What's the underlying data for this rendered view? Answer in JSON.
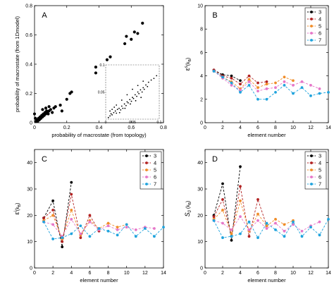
{
  "chart_data": [
    {
      "panel_label": "A",
      "type": "scatter",
      "xlabel": "probability of macrostate (from topology)",
      "ylabel": "probability of macrostate (from 1Dmodel)",
      "xlim": [
        0,
        0.8
      ],
      "ylim": [
        0,
        0.8
      ],
      "xticks": [
        "0",
        "0.2",
        "0.4",
        "0.6",
        "0.8"
      ],
      "yticks": [
        "0",
        "0.2",
        "0.4",
        "0.6",
        "0.8"
      ],
      "points": [
        [
          0.01,
          0.01
        ],
        [
          0.015,
          0.02
        ],
        [
          0.02,
          0.01
        ],
        [
          0.025,
          0.03
        ],
        [
          0.03,
          0.02
        ],
        [
          0.035,
          0.04
        ],
        [
          0.04,
          0.03
        ],
        [
          0.045,
          0.05
        ],
        [
          0.05,
          0.04
        ],
        [
          0.055,
          0.06
        ],
        [
          0.06,
          0.05
        ],
        [
          0.065,
          0.07
        ],
        [
          0.07,
          0.06
        ],
        [
          0.075,
          0.08
        ],
        [
          0.08,
          0.07
        ],
        [
          0.085,
          0.06
        ],
        [
          0.09,
          0.08
        ],
        [
          0.1,
          0.09
        ],
        [
          0.11,
          0.07
        ],
        [
          0.12,
          0.1
        ],
        [
          0.13,
          0.11
        ],
        [
          0.05,
          0.09
        ],
        [
          0.07,
          0.1
        ],
        [
          0.09,
          0.11
        ],
        [
          0.16,
          0.12
        ],
        [
          0.17,
          0.08
        ],
        [
          0.2,
          0.16
        ],
        [
          0.22,
          0.2
        ],
        [
          0.23,
          0.21
        ],
        [
          0.38,
          0.38
        ],
        [
          0.38,
          0.34
        ],
        [
          0.45,
          0.43
        ],
        [
          0.47,
          0.45
        ],
        [
          0.56,
          0.54
        ],
        [
          0.57,
          0.59
        ],
        [
          0.62,
          0.62
        ],
        [
          0.64,
          0.61
        ],
        [
          0.67,
          0.68
        ],
        [
          0.6,
          0.57
        ],
        [
          0.0,
          0.06
        ],
        [
          0.005,
          0.03
        ]
      ],
      "inset": {
        "xlim": [
          0,
          0.1
        ],
        "ylim": [
          0,
          0.1
        ],
        "xticks": [
          "0",
          "0.05",
          "0.1"
        ],
        "yticks": [
          "0.05",
          "0.1"
        ],
        "points": [
          [
            0.005,
            0.003
          ],
          [
            0.008,
            0.006
          ],
          [
            0.01,
            0.01
          ],
          [
            0.012,
            0.008
          ],
          [
            0.015,
            0.012
          ],
          [
            0.018,
            0.015
          ],
          [
            0.02,
            0.011
          ],
          [
            0.022,
            0.018
          ],
          [
            0.025,
            0.02
          ],
          [
            0.028,
            0.017
          ],
          [
            0.03,
            0.024
          ],
          [
            0.032,
            0.02
          ],
          [
            0.035,
            0.028
          ],
          [
            0.038,
            0.025
          ],
          [
            0.04,
            0.032
          ],
          [
            0.042,
            0.03
          ],
          [
            0.045,
            0.036
          ],
          [
            0.048,
            0.033
          ],
          [
            0.05,
            0.04
          ],
          [
            0.052,
            0.038
          ],
          [
            0.055,
            0.045
          ],
          [
            0.058,
            0.042
          ],
          [
            0.06,
            0.05
          ],
          [
            0.062,
            0.047
          ],
          [
            0.065,
            0.054
          ],
          [
            0.068,
            0.05
          ],
          [
            0.07,
            0.058
          ],
          [
            0.072,
            0.055
          ],
          [
            0.075,
            0.063
          ],
          [
            0.078,
            0.06
          ],
          [
            0.08,
            0.068
          ],
          [
            0.085,
            0.072
          ],
          [
            0.09,
            0.075
          ],
          [
            0.095,
            0.08
          ],
          [
            0.012,
            0.018
          ],
          [
            0.02,
            0.026
          ],
          [
            0.03,
            0.035
          ],
          [
            0.04,
            0.045
          ],
          [
            0.05,
            0.055
          ],
          [
            0.06,
            0.062
          ],
          [
            0.07,
            0.07
          ],
          [
            0.008,
            0.015
          ],
          [
            0.016,
            0.022
          ],
          [
            0.026,
            0.012
          ],
          [
            0.036,
            0.02
          ],
          [
            0.046,
            0.028
          ],
          [
            0.056,
            0.034
          ],
          [
            0.066,
            0.04
          ]
        ]
      }
    },
    {
      "panel_label": "B",
      "type": "line",
      "xlabel": "element number",
      "ylabel_main": "ε",
      "ylabel_sup": "s",
      "ylabel_paren": "(k",
      "ylabel_sub": "B",
      "ylabel_close": ")",
      "xlim": [
        0,
        14
      ],
      "ylim": [
        0,
        10
      ],
      "xticks": [
        "0",
        "2",
        "4",
        "6",
        "8",
        "10",
        "12",
        "14"
      ],
      "yticks": [
        "0",
        "2",
        "4",
        "6",
        "8",
        "10"
      ],
      "series": [
        {
          "name": "3",
          "color": "#000000",
          "x": [
            1,
            2,
            3,
            4
          ],
          "y": [
            4.5,
            4.1,
            4.0,
            3.6
          ]
        },
        {
          "name": "4",
          "color": "#b22222",
          "x": [
            1,
            2,
            3,
            4,
            5,
            6,
            7
          ],
          "y": [
            4.5,
            4.0,
            3.8,
            3.3,
            4.0,
            3.4,
            3.5
          ]
        },
        {
          "name": "5",
          "color": "#f08c28",
          "x": [
            1,
            2,
            3,
            4,
            5,
            6,
            7,
            8,
            9,
            10
          ],
          "y": [
            4.4,
            3.9,
            3.5,
            2.9,
            3.7,
            3.0,
            3.3,
            3.4,
            3.9,
            3.6
          ]
        },
        {
          "name": "6",
          "color": "#e676c8",
          "x": [
            1,
            2,
            3,
            4,
            5,
            6,
            7,
            8,
            9,
            10,
            11,
            12,
            13
          ],
          "y": [
            4.4,
            3.8,
            3.2,
            2.8,
            3.5,
            2.7,
            2.9,
            3.0,
            3.5,
            3.2,
            3.5,
            3.2,
            2.9
          ]
        },
        {
          "name": "7",
          "color": "#1fa3dd",
          "x": [
            1,
            2,
            3,
            4,
            5,
            6,
            7,
            8,
            9,
            10,
            11,
            12,
            13,
            14
          ],
          "y": [
            4.4,
            3.9,
            3.4,
            2.6,
            3.2,
            2.0,
            2.0,
            2.6,
            3.2,
            2.5,
            3.0,
            2.3,
            2.5,
            2.6
          ]
        }
      ]
    },
    {
      "panel_label": "C",
      "type": "line",
      "xlabel": "element number",
      "ylabel_main": "ε",
      "ylabel_sup": "i",
      "ylabel_paren": "(k",
      "ylabel_sub": "B",
      "ylabel_close": ")",
      "xlim": [
        0,
        14
      ],
      "ylim": [
        0,
        45
      ],
      "xticks": [
        "0",
        "2",
        "4",
        "6",
        "8",
        "10",
        "12",
        "14"
      ],
      "yticks": [
        "0",
        "10",
        "20",
        "30",
        "40"
      ],
      "series": [
        {
          "name": "3",
          "color": "#000000",
          "x": [
            1,
            2,
            3,
            4
          ],
          "y": [
            19.0,
            25.5,
            8.0,
            32.5
          ]
        },
        {
          "name": "4",
          "color": "#b22222",
          "x": [
            1,
            2,
            3,
            4,
            5,
            6,
            7
          ],
          "y": [
            19.0,
            22.0,
            10.0,
            28.0,
            11.5,
            20.0,
            14.0
          ]
        },
        {
          "name": "5",
          "color": "#f08c28",
          "x": [
            1,
            2,
            3,
            4,
            5,
            6,
            7,
            8,
            9,
            10
          ],
          "y": [
            18.0,
            20.0,
            11.0,
            22.0,
            12.5,
            18.0,
            15.0,
            17.0,
            15.5,
            16.5
          ]
        },
        {
          "name": "6",
          "color": "#e676c8",
          "x": [
            1,
            2,
            3,
            4,
            5,
            6,
            7,
            8,
            9,
            10,
            11,
            12,
            13
          ],
          "y": [
            17.5,
            16.5,
            12.0,
            18.5,
            13.0,
            17.5,
            14.5,
            16.0,
            14.5,
            15.5,
            14.5,
            15.5,
            15.0
          ]
        },
        {
          "name": "7",
          "color": "#1fa3dd",
          "x": [
            1,
            2,
            3,
            4,
            5,
            6,
            7,
            8,
            9,
            10,
            11,
            12,
            13,
            14
          ],
          "y": [
            17.5,
            11.0,
            11.5,
            13.0,
            16.0,
            12.0,
            15.0,
            14.0,
            12.5,
            16.5,
            12.0,
            15.0,
            12.0,
            15.5
          ]
        }
      ]
    },
    {
      "panel_label": "D",
      "type": "line",
      "xlabel": "element number",
      "ylabel_main": "S",
      "ylabel_sup": "",
      "ylabel_subscript": "0",
      "ylabel_paren": " (k",
      "ylabel_sub": "B",
      "ylabel_close": ")",
      "xlim": [
        0,
        14
      ],
      "ylim": [
        0,
        45
      ],
      "xticks": [
        "0",
        "2",
        "4",
        "6",
        "8",
        "10",
        "12",
        "14"
      ],
      "yticks": [
        "0",
        "10",
        "20",
        "30",
        "40"
      ],
      "series": [
        {
          "name": "3",
          "color": "#000000",
          "x": [
            1,
            2,
            3,
            4
          ],
          "y": [
            20.0,
            32.0,
            10.5,
            38.5
          ]
        },
        {
          "name": "4",
          "color": "#b22222",
          "x": [
            1,
            2,
            3,
            4,
            5,
            6,
            7
          ],
          "y": [
            19.5,
            26.0,
            12.0,
            31.0,
            12.0,
            26.0,
            16.0
          ]
        },
        {
          "name": "5",
          "color": "#f08c28",
          "x": [
            1,
            2,
            3,
            4,
            5,
            6,
            7,
            8,
            9,
            10
          ],
          "y": [
            18.5,
            22.0,
            13.0,
            25.5,
            14.0,
            20.5,
            16.0,
            18.5,
            16.5,
            18.0
          ]
        },
        {
          "name": "6",
          "color": "#e676c8",
          "x": [
            1,
            2,
            3,
            4,
            5,
            6,
            7,
            8,
            9,
            10,
            11,
            12,
            13
          ],
          "y": [
            18.0,
            17.0,
            14.5,
            19.5,
            14.5,
            18.0,
            15.0,
            17.0,
            14.0,
            16.5,
            14.0,
            16.0,
            17.5
          ]
        },
        {
          "name": "7",
          "color": "#1fa3dd",
          "x": [
            1,
            2,
            3,
            4,
            5,
            6,
            7,
            8,
            9,
            10,
            11,
            12,
            13,
            14
          ],
          "y": [
            18.0,
            11.5,
            12.0,
            13.0,
            17.5,
            11.5,
            17.0,
            14.5,
            12.0,
            17.5,
            12.0,
            15.5,
            12.5,
            18.5
          ]
        }
      ]
    }
  ]
}
